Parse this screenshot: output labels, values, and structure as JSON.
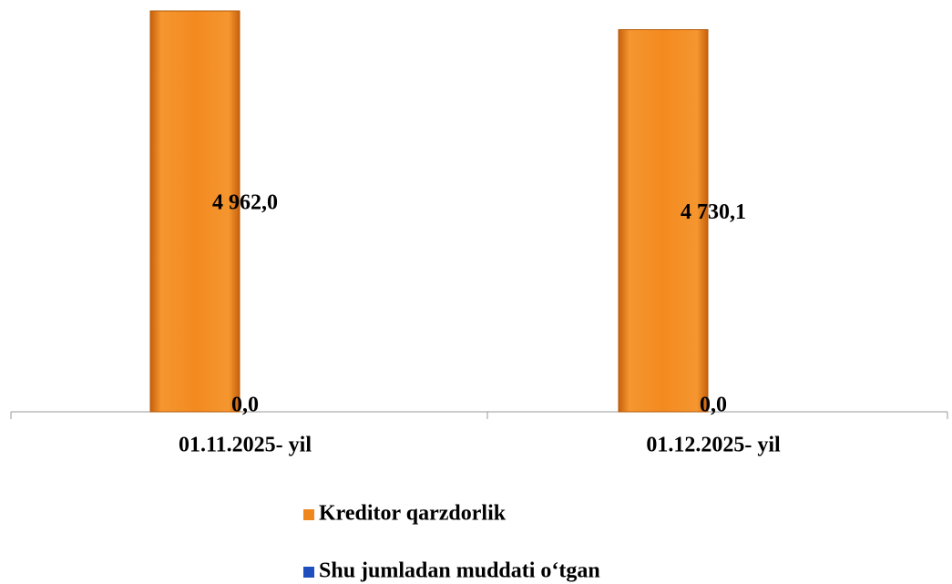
{
  "chart_data": {
    "type": "bar",
    "categories": [
      "01.11.2025- yil",
      "01.12.2025- yil"
    ],
    "series": [
      {
        "name": "Kreditor qarzdorlik",
        "color": "#f0861e",
        "values": [
          4962.0,
          4730.1
        ],
        "value_labels": [
          "4 962,0",
          "4 730,1"
        ]
      },
      {
        "name": "Shu jumladan muddati o‘tgan",
        "color": "#1f4fbf",
        "values": [
          0.0,
          0.0
        ],
        "value_labels": [
          "0,0",
          "0,0"
        ]
      }
    ],
    "legend": "bottom"
  }
}
